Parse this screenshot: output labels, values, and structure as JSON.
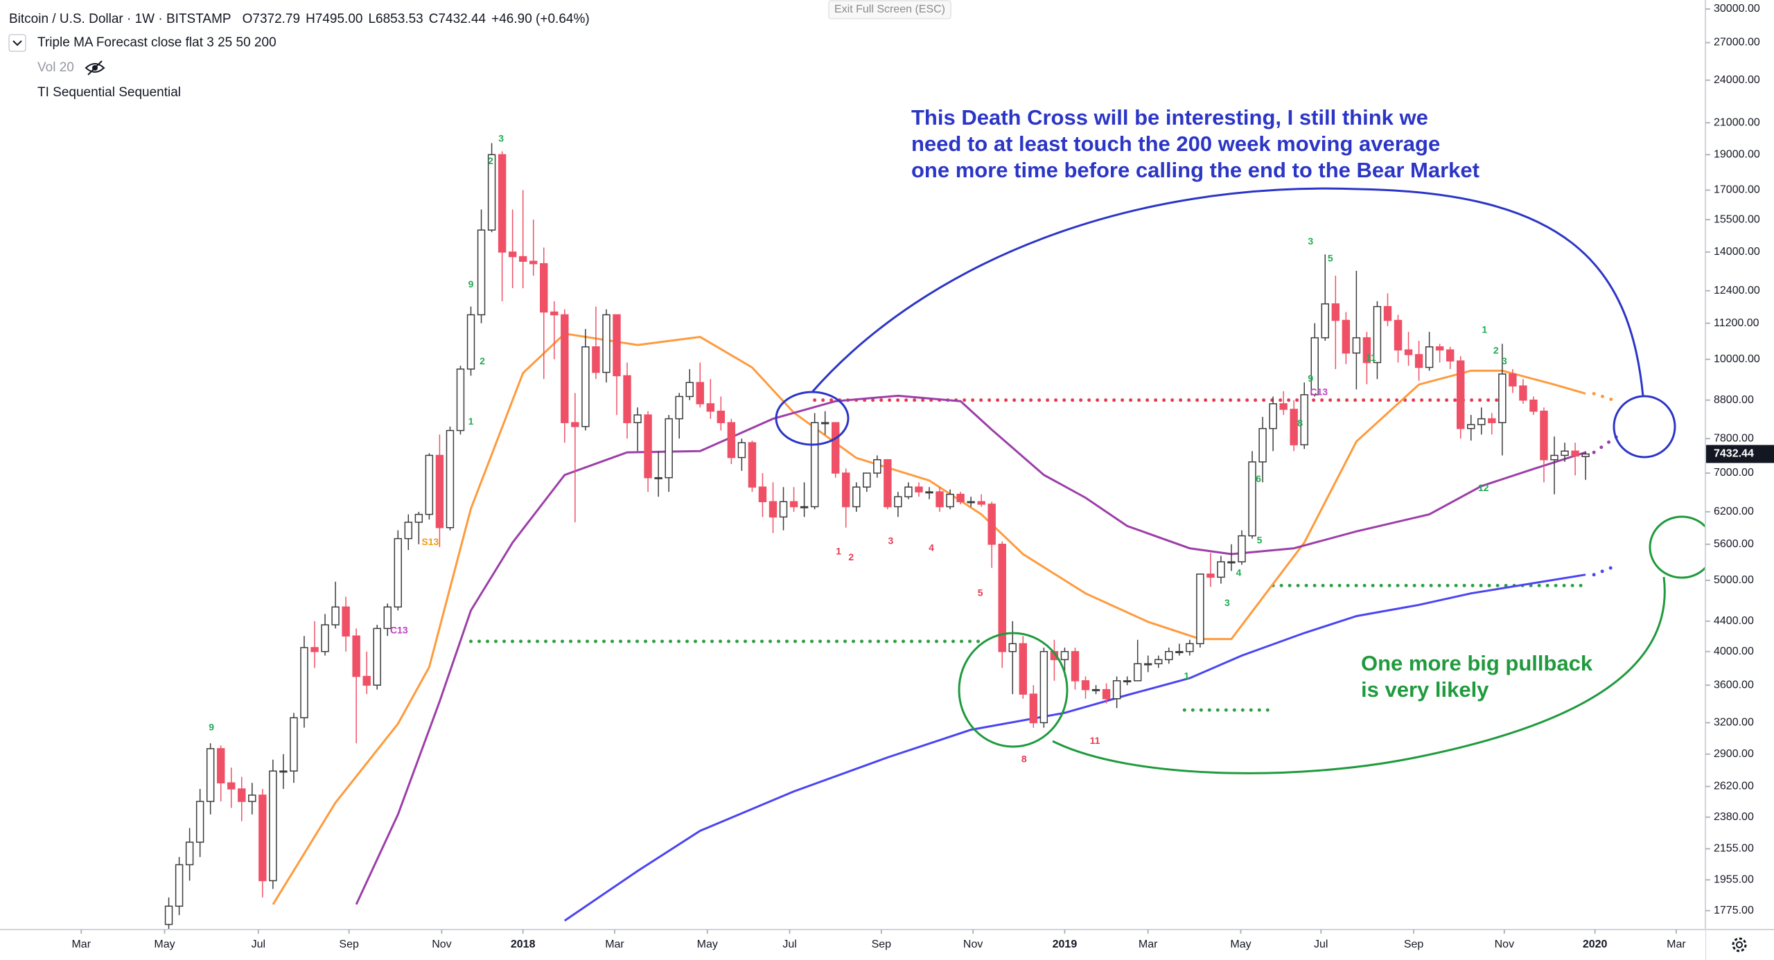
{
  "header": {
    "symbol": "Bitcoin / U.S. Dollar · 1W · BITSTAMP",
    "open": "O7372.79",
    "high": "H7495.00",
    "low": "L6853.53",
    "close": "C7432.44",
    "change": "+46.90 (+0.64%)"
  },
  "indicators": [
    "Triple MA Forecast close flat 3 25 50 200",
    "Vol 20",
    "TI Sequential Sequential"
  ],
  "exit_button": "Exit Full Screen (ESC)",
  "chart_data": {
    "type": "candlestick",
    "log_scale": true,
    "up_color": "#ffffff",
    "down_color": "#ef5066",
    "border_color": "#3b3b3b",
    "x": [
      -34,
      -33,
      -32,
      -31,
      -30,
      -29,
      -28,
      -27,
      -26,
      -25,
      -24,
      -23,
      -22,
      -21,
      -20,
      -19,
      -18,
      -17,
      -16,
      -15,
      -14,
      -13,
      -12,
      -11,
      -10,
      -9,
      -8,
      -7,
      -6,
      -5,
      -4,
      -3,
      -2,
      -1,
      0,
      1,
      2,
      3,
      4,
      5,
      6,
      7,
      8,
      9,
      10,
      11,
      12,
      13,
      14,
      15,
      16,
      17,
      18,
      19,
      20,
      21,
      22,
      23,
      24,
      25,
      26,
      27,
      28,
      29,
      30,
      31,
      32,
      33,
      34,
      35,
      36,
      37,
      38,
      39,
      40,
      41,
      42,
      43,
      44,
      45,
      46,
      47,
      48,
      49,
      50,
      51,
      52,
      53,
      54,
      55,
      56,
      57,
      58,
      59,
      60,
      61,
      62,
      63,
      64,
      65,
      66,
      67,
      68,
      69,
      70,
      71,
      72,
      73,
      74,
      75,
      76,
      77,
      78,
      79,
      80,
      81,
      82,
      83,
      84,
      85,
      86,
      87,
      88,
      89,
      90,
      91,
      92,
      93,
      94,
      95,
      96,
      97,
      98,
      99,
      100,
      101,
      102
    ],
    "open": [
      1700,
      1800,
      2050,
      2200,
      2500,
      2950,
      2650,
      2600,
      2500,
      2550,
      1950,
      2750,
      2750,
      3250,
      4050,
      4000,
      4350,
      4600,
      4200,
      3700,
      3600,
      4300,
      4600,
      5700,
      6000,
      6150,
      7400,
      5900,
      8000,
      9700,
      11500,
      15000,
      19000,
      14000,
      13800,
      13600,
      13500,
      11600,
      11500,
      8200,
      8100,
      10400,
      9600,
      11500,
      9500,
      8200,
      8400,
      6900,
      6900,
      8300,
      8900,
      9300,
      8700,
      8500,
      8200,
      7350,
      7700,
      6700,
      6400,
      6100,
      6400,
      6300,
      6300,
      8200,
      8200,
      7000,
      6300,
      6700,
      7000,
      7300,
      6300,
      6500,
      6700,
      6600,
      6600,
      6300,
      6550,
      6400,
      6400,
      6350,
      5600,
      4000,
      4100,
      3500,
      3200,
      4000,
      3900,
      4000,
      3650,
      3550,
      3550,
      3450,
      3650,
      3650,
      3850,
      3850,
      3900,
      4000,
      4000,
      4100,
      5100,
      5050,
      5300,
      5300,
      5750,
      7250,
      8050,
      8700,
      8550,
      7650,
      8950,
      10700,
      11900,
      11300,
      10200,
      10700,
      9900,
      11800,
      11300,
      10300,
      10150,
      9750,
      10400,
      10300,
      9950,
      8050,
      8150,
      8300,
      8200,
      9550,
      9200,
      8800,
      8500,
      7300,
      7400,
      7500,
      7372.79
    ],
    "high": [
      1850,
      2100,
      2300,
      2600,
      3000,
      2980,
      2780,
      2700,
      2650,
      2600,
      2850,
      2900,
      3300,
      4200,
      4400,
      4500,
      4980,
      4750,
      4300,
      4000,
      4350,
      4650,
      5850,
      6150,
      6200,
      7450,
      7900,
      8100,
      9800,
      11800,
      16000,
      19700,
      19200,
      16000,
      17000,
      15500,
      14200,
      12000,
      11700,
      9000,
      11000,
      11800,
      11700,
      11500,
      9900,
      8600,
      8500,
      7500,
      8400,
      9000,
      9700,
      9900,
      9400,
      8900,
      8300,
      7800,
      7750,
      7000,
      6800,
      6700,
      6700,
      6800,
      8450,
      8500,
      8200,
      7100,
      6800,
      7000,
      7400,
      7300,
      6600,
      6800,
      6800,
      6700,
      6700,
      6650,
      6600,
      6500,
      6550,
      6400,
      5650,
      4400,
      4200,
      3600,
      4050,
      4150,
      4050,
      4050,
      3700,
      3600,
      3620,
      3700,
      3700,
      4150,
      3950,
      3950,
      4050,
      4100,
      4150,
      5100,
      5450,
      5400,
      5600,
      5850,
      7500,
      8350,
      8900,
      9050,
      8800,
      9300,
      11200,
      13900,
      13000,
      11600,
      13200,
      10900,
      12000,
      12300,
      11500,
      10900,
      10600,
      10900,
      10500,
      10400,
      10100,
      8400,
      8600,
      8450,
      10500,
      9700,
      9400,
      8900,
      8600,
      7850,
      7700,
      7700,
      7495
    ],
    "low": [
      1650,
      1750,
      1950,
      2100,
      2400,
      2500,
      2450,
      2350,
      2400,
      1850,
      1900,
      2600,
      2650,
      3150,
      3800,
      3950,
      4300,
      4000,
      3000,
      3500,
      3550,
      4200,
      4550,
      5500,
      5600,
      6050,
      5550,
      5850,
      7900,
      9500,
      11200,
      14900,
      12000,
      12500,
      12500,
      13000,
      9400,
      10000,
      7700,
      6000,
      8000,
      9400,
      9300,
      8400,
      7800,
      7500,
      6600,
      6500,
      6600,
      7800,
      8800,
      8600,
      8300,
      8000,
      7200,
      7050,
      6600,
      6100,
      5800,
      5850,
      6200,
      6100,
      6250,
      7900,
      6900,
      5900,
      6200,
      6600,
      6900,
      6250,
      6100,
      6450,
      6500,
      6450,
      6200,
      6250,
      6350,
      6300,
      6300,
      5200,
      3800,
      3500,
      3450,
      3150,
      3150,
      3650,
      3700,
      3550,
      3450,
      3500,
      3400,
      3350,
      3600,
      3650,
      3750,
      3800,
      3850,
      3950,
      3950,
      4050,
      4900,
      4950,
      5150,
      5250,
      5700,
      6800,
      7500,
      8400,
      7500,
      7550,
      8900,
      10600,
      9700,
      9850,
      9100,
      9250,
      9400,
      11100,
      9900,
      9800,
      9350,
      9650,
      9900,
      9700,
      7800,
      7750,
      7900,
      7900,
      7400,
      9000,
      8700,
      8400,
      6800,
      6550,
      7250,
      6950,
      6853.53
    ],
    "close": [
      1800,
      2050,
      2200,
      2500,
      2950,
      2650,
      2600,
      2500,
      2550,
      1950,
      2750,
      2750,
      3250,
      4050,
      4000,
      4350,
      4600,
      4200,
      3700,
      3600,
      4300,
      4600,
      5700,
      6000,
      6150,
      7400,
      5900,
      8000,
      9700,
      11500,
      15000,
      19000,
      14000,
      13800,
      13600,
      13500,
      11600,
      11500,
      8200,
      8100,
      10400,
      9600,
      11500,
      9500,
      8200,
      8400,
      6900,
      6900,
      8300,
      8900,
      9300,
      8700,
      8500,
      8200,
      7350,
      7700,
      6700,
      6400,
      6100,
      6400,
      6300,
      6300,
      8200,
      8200,
      7000,
      6300,
      6700,
      7000,
      7300,
      6300,
      6500,
      6700,
      6600,
      6600,
      6300,
      6550,
      6400,
      6400,
      6350,
      5600,
      4000,
      4100,
      3500,
      3200,
      4000,
      3900,
      4000,
      3650,
      3550,
      3550,
      3450,
      3650,
      3650,
      3850,
      3850,
      3900,
      4000,
      4000,
      4100,
      5100,
      5050,
      5300,
      5300,
      5750,
      7250,
      8050,
      8700,
      8550,
      7650,
      8950,
      10700,
      11900,
      11300,
      10200,
      10700,
      9900,
      11800,
      11300,
      10300,
      10150,
      9750,
      10400,
      10300,
      9950,
      8050,
      8150,
      8300,
      8200,
      9550,
      9200,
      8800,
      8500,
      7300,
      7400,
      7500,
      7385,
      7432.44
    ],
    "last_price_color": "#131722",
    "moving_averages": [
      {
        "color": "#ff9a3c",
        "x": [
          -24,
          -18,
          -12,
          -9,
          -5,
          0,
          4,
          11,
          17,
          22,
          26,
          32,
          39,
          44,
          48,
          54,
          60,
          65,
          68,
          75,
          80,
          86,
          91,
          94,
          99,
          102
        ],
        "values": [
          1810,
          2490,
          3190,
          3810,
          6260,
          9580,
          10840,
          10460,
          10730,
          9750,
          8460,
          7340,
          6840,
          6150,
          5430,
          4800,
          4390,
          4160,
          4160,
          5630,
          7730,
          9240,
          9650,
          9650,
          9240,
          8980
        ],
        "forecast": {
          "x": 105,
          "value": 8770
        }
      },
      {
        "color": "#9c3ea8",
        "x": [
          -16,
          -12,
          -8,
          -5,
          -1,
          4,
          10,
          17,
          24,
          30,
          36,
          42,
          45,
          50,
          54,
          58,
          64,
          68,
          74,
          80,
          87,
          92,
          97,
          102
        ],
        "values": [
          1810,
          2400,
          3420,
          4550,
          5630,
          6960,
          7470,
          7500,
          8300,
          8770,
          8920,
          8770,
          8020,
          6960,
          6480,
          5930,
          5530,
          5430,
          5530,
          5830,
          6150,
          6720,
          7090,
          7470
        ],
        "forecast": {
          "x": 105,
          "value": 7850
        }
      },
      {
        "color": "#4a44f2",
        "x": [
          4,
          11,
          17,
          26,
          35,
          43,
          52,
          58,
          64,
          69,
          75,
          80,
          86,
          91,
          96,
          102
        ],
        "values": [
          1720,
          2010,
          2280,
          2580,
          2870,
          3130,
          3300,
          3490,
          3680,
          3950,
          4240,
          4470,
          4630,
          4800,
          4930,
          5090
        ],
        "forecast": {
          "x": 105,
          "value": 5240
        }
      }
    ],
    "levels": [
      {
        "y": 8800,
        "x": [
          28,
          94
        ],
        "color": "#e8384f"
      },
      {
        "y": 4130,
        "x": [
          -5,
          44
        ],
        "color": "#2ea043"
      },
      {
        "y": 4920,
        "x": [
          72,
          102
        ],
        "color": "#2ea043"
      },
      {
        "y": 3330,
        "x": [
          63.5,
          72
        ],
        "color": "#2ea043"
      }
    ],
    "td_labels": [
      {
        "text": "1",
        "x": 30.3,
        "y": 5470,
        "color": "#e8384f"
      },
      {
        "text": "2",
        "x": 31.5,
        "y": 5370,
        "color": "#e8384f"
      },
      {
        "text": "3",
        "x": 35.3,
        "y": 5650,
        "color": "#e8384f"
      },
      {
        "text": "4",
        "x": 39.2,
        "y": 5530,
        "color": "#e8384f"
      },
      {
        "text": "5",
        "x": 43.9,
        "y": 4800,
        "color": "#e8384f"
      },
      {
        "text": "8",
        "x": 48.1,
        "y": 2850,
        "color": "#e8384f"
      },
      {
        "text": "11",
        "x": 54.9,
        "y": 3020,
        "color": "#e8384f"
      },
      {
        "text": "9",
        "x": -29.9,
        "y": 3150,
        "color": "#22ab52"
      },
      {
        "text": "2",
        "x": -3.1,
        "y": 18590,
        "color": "#22ab52"
      },
      {
        "text": "3",
        "x": -2.1,
        "y": 19950,
        "color": "#22ab52"
      },
      {
        "text": "9",
        "x": -5,
        "y": 12630,
        "color": "#22ab52"
      },
      {
        "text": "2",
        "x": -3.9,
        "y": 9930,
        "color": "#22ab52"
      },
      {
        "text": "1",
        "x": -5,
        "y": 8220,
        "color": "#22ab52"
      },
      {
        "text": "12",
        "x": 92.2,
        "y": 6670,
        "color": "#22ab52"
      },
      {
        "text": "3",
        "x": 75.6,
        "y": 14450,
        "color": "#22ab52"
      },
      {
        "text": "5",
        "x": 77.5,
        "y": 13700,
        "color": "#22ab52"
      },
      {
        "text": "4",
        "x": 68.7,
        "y": 5110,
        "color": "#22ab52"
      },
      {
        "text": "3",
        "x": 67.6,
        "y": 4650,
        "color": "#22ab52"
      },
      {
        "text": "1",
        "x": 63.7,
        "y": 3700,
        "color": "#22ab52"
      },
      {
        "text": "5",
        "x": 70.7,
        "y": 5660,
        "color": "#22ab52"
      },
      {
        "text": "6",
        "x": 70.6,
        "y": 6860,
        "color": "#22ab52"
      },
      {
        "text": "8",
        "x": 74.6,
        "y": 8170,
        "color": "#22ab52"
      },
      {
        "text": "9",
        "x": 75.6,
        "y": 9400,
        "color": "#22ab52"
      },
      {
        "text": "11",
        "x": 81.4,
        "y": 10030,
        "color": "#22ab52"
      },
      {
        "text": "1",
        "x": 92.3,
        "y": 10950,
        "color": "#22ab52"
      },
      {
        "text": "2",
        "x": 93.4,
        "y": 10270,
        "color": "#22ab52"
      },
      {
        "text": "3",
        "x": 94.2,
        "y": 9930,
        "color": "#22ab52"
      },
      {
        "text": "S13",
        "x": -8.9,
        "y": 5630,
        "color": "#f39c12"
      },
      {
        "text": "C13",
        "x": -11.9,
        "y": 4270,
        "color": "#c040c0"
      },
      {
        "text": "C13",
        "x": 76.4,
        "y": 9010,
        "color": "#c040c0"
      }
    ],
    "annotations": [
      {
        "lines": [
          "This Death Cross will be interesting, I still think we",
          "need to at least touch the 200 week moving average",
          "one more time before calling the end to the Bear Market"
        ],
        "color": "#2b35c6"
      },
      {
        "lines": [
          "One more big pullback",
          "is very likely"
        ],
        "color": "#1f9a3c"
      }
    ],
    "xlim": [
      -50.2,
      113.5
    ],
    "xticks": [
      {
        "value": -42.4,
        "label": "Mar"
      },
      {
        "value": -34.4,
        "label": "May"
      },
      {
        "value": -25.4,
        "label": "Jul"
      },
      {
        "value": -16.7,
        "label": "Sep"
      },
      {
        "value": -7.8,
        "label": "Nov"
      },
      {
        "value": 0,
        "label": "2018"
      },
      {
        "value": 8.8,
        "label": "Mar"
      },
      {
        "value": 17.7,
        "label": "May"
      },
      {
        "value": 25.6,
        "label": "Jul"
      },
      {
        "value": 34.4,
        "label": "Sep"
      },
      {
        "value": 43.2,
        "label": "Nov"
      },
      {
        "value": 52,
        "label": "2019"
      },
      {
        "value": 60,
        "label": "Mar"
      },
      {
        "value": 68.9,
        "label": "May"
      },
      {
        "value": 76.6,
        "label": "Jul"
      },
      {
        "value": 85.5,
        "label": "Sep"
      },
      {
        "value": 94.2,
        "label": "Nov"
      },
      {
        "value": 102.9,
        "label": "2020"
      },
      {
        "value": 110.7,
        "label": "Mar"
      }
    ],
    "ylim": [
      1673,
      30860
    ],
    "yticks": [
      {
        "value": 1775,
        "label": "1775.00"
      },
      {
        "value": 1955,
        "label": "1955.00"
      },
      {
        "value": 2155,
        "label": "2155.00"
      },
      {
        "value": 2380,
        "label": "2380.00"
      },
      {
        "value": 2620,
        "label": "2620.00"
      },
      {
        "value": 2900,
        "label": "2900.00"
      },
      {
        "value": 3200,
        "label": "3200.00"
      },
      {
        "value": 3600,
        "label": "3600.00"
      },
      {
        "value": 4000,
        "label": "4000.00"
      },
      {
        "value": 4400,
        "label": "4400.00"
      },
      {
        "value": 5000,
        "label": "5000.00"
      },
      {
        "value": 5600,
        "label": "5600.00"
      },
      {
        "value": 6200,
        "label": "6200.00"
      },
      {
        "value": 7000,
        "label": "7000.00"
      },
      {
        "value": 7800,
        "label": "7800.00"
      },
      {
        "value": 8800,
        "label": "8800.00"
      },
      {
        "value": 10000,
        "label": "10000.00"
      },
      {
        "value": 11200,
        "label": "11200.00"
      },
      {
        "value": 12400,
        "label": "12400.00"
      },
      {
        "value": 14000,
        "label": "14000.00"
      },
      {
        "value": 15500,
        "label": "15500.00"
      },
      {
        "value": 17000,
        "label": "17000.00"
      },
      {
        "value": 19000,
        "label": "19000.00"
      },
      {
        "value": 21000,
        "label": "21000.00"
      },
      {
        "value": 24000,
        "label": "24000.00"
      },
      {
        "value": 27000,
        "label": "27000.00"
      },
      {
        "value": 30000,
        "label": "30000.00"
      }
    ]
  }
}
